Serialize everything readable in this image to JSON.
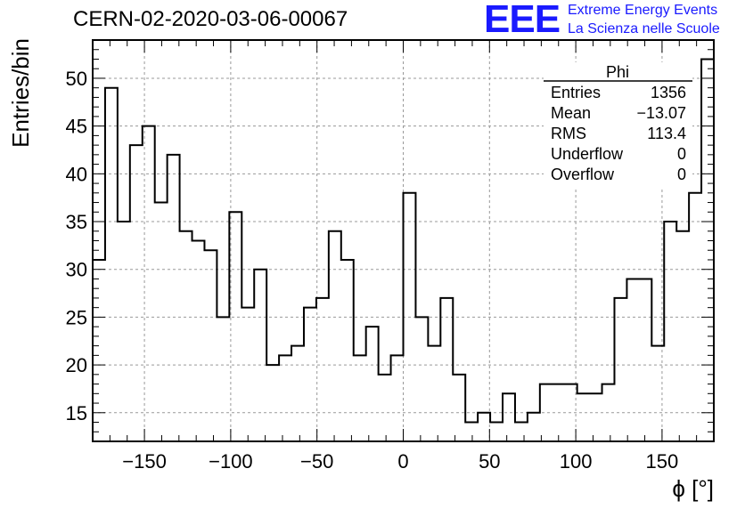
{
  "title": "CERN-02-2020-03-06-00067",
  "logo": {
    "mark": "EEE",
    "line1": "Extreme Energy Events",
    "line2": "La Scienza nelle Scuole",
    "color": "#1a1aff"
  },
  "stats": {
    "name": "Phi",
    "rows": [
      {
        "label": "Entries",
        "value": "1356"
      },
      {
        "label": "Mean",
        "value": "−13.07"
      },
      {
        "label": "RMS",
        "value": "113.4"
      },
      {
        "label": "Underflow",
        "value": "0"
      },
      {
        "label": "Overflow",
        "value": "0"
      }
    ]
  },
  "chart_data": {
    "type": "histogram",
    "xlabel": "ϕ [°]",
    "ylabel": "Entries/bin",
    "xlim": [
      -180,
      180
    ],
    "ylim": [
      12,
      54
    ],
    "grid": true,
    "line_color": "#000000",
    "x_ticks": [
      -150,
      -100,
      -50,
      0,
      50,
      100,
      150
    ],
    "x_tick_labels": [
      "−150",
      "−100",
      "−50",
      "0",
      "50",
      "100",
      "150"
    ],
    "y_ticks": [
      15,
      20,
      25,
      30,
      35,
      40,
      45,
      50
    ],
    "y_tick_labels": [
      "15",
      "20",
      "25",
      "30",
      "35",
      "40",
      "45",
      "50"
    ],
    "bin_edges_start": -180,
    "bin_width": 7.2,
    "values": [
      31,
      49,
      35,
      43,
      45,
      37,
      42,
      34,
      33,
      32,
      25,
      36,
      26,
      30,
      20,
      21,
      22,
      26,
      27,
      34,
      31,
      21,
      24,
      19,
      21,
      38,
      25,
      22,
      27,
      19,
      14,
      15,
      14,
      17,
      14,
      15,
      18,
      18,
      18,
      17,
      17,
      18,
      27,
      29,
      29,
      22,
      35,
      34,
      38,
      52
    ]
  }
}
